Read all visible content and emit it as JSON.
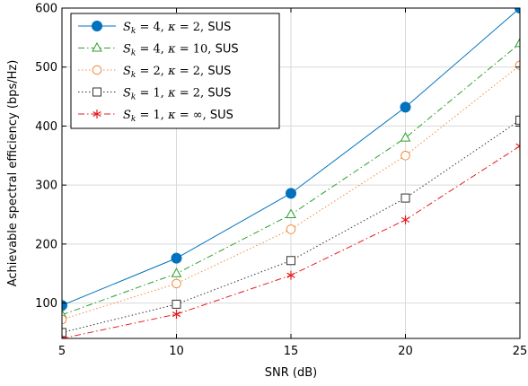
{
  "chart_data": {
    "type": "line",
    "title": "",
    "xlabel": "SNR (dB)",
    "ylabel": "Achievable spectral efficiency (bps/Hz)",
    "x": [
      5,
      10,
      15,
      20,
      25
    ],
    "xlim": [
      5,
      25
    ],
    "ylim": [
      40,
      600
    ],
    "xticks": [
      5,
      10,
      15,
      20,
      25
    ],
    "yticks": [
      100,
      200,
      300,
      400,
      500,
      600
    ],
    "grid": true,
    "legend_position": "top-left",
    "series": [
      {
        "name": "S_k = 4, κ = 2, SUS",
        "values": [
          96,
          176,
          286,
          432,
          600
        ],
        "color": "#0072bd",
        "line_style": "solid",
        "marker": "filled-circle"
      },
      {
        "name": "S_k = 4, κ = 10, SUS",
        "values": [
          80,
          150,
          250,
          380,
          540
        ],
        "color": "#2ca02c",
        "line_style": "dashdot",
        "marker": "triangle"
      },
      {
        "name": "S_k = 2, κ = 2, SUS",
        "values": [
          72,
          133,
          225,
          350,
          503
        ],
        "color": "#f28a3c",
        "line_style": "dotted",
        "marker": "open-circle"
      },
      {
        "name": "S_k = 1, κ = 2, SUS",
        "values": [
          50,
          98,
          172,
          278,
          410
        ],
        "color": "#333333",
        "line_style": "dotted",
        "marker": "square"
      },
      {
        "name": "S_k = 1, κ = ∞, SUS",
        "values": [
          40,
          81,
          147,
          241,
          366
        ],
        "color": "#e41a1c",
        "line_style": "dashdot",
        "marker": "asterisk"
      }
    ]
  }
}
